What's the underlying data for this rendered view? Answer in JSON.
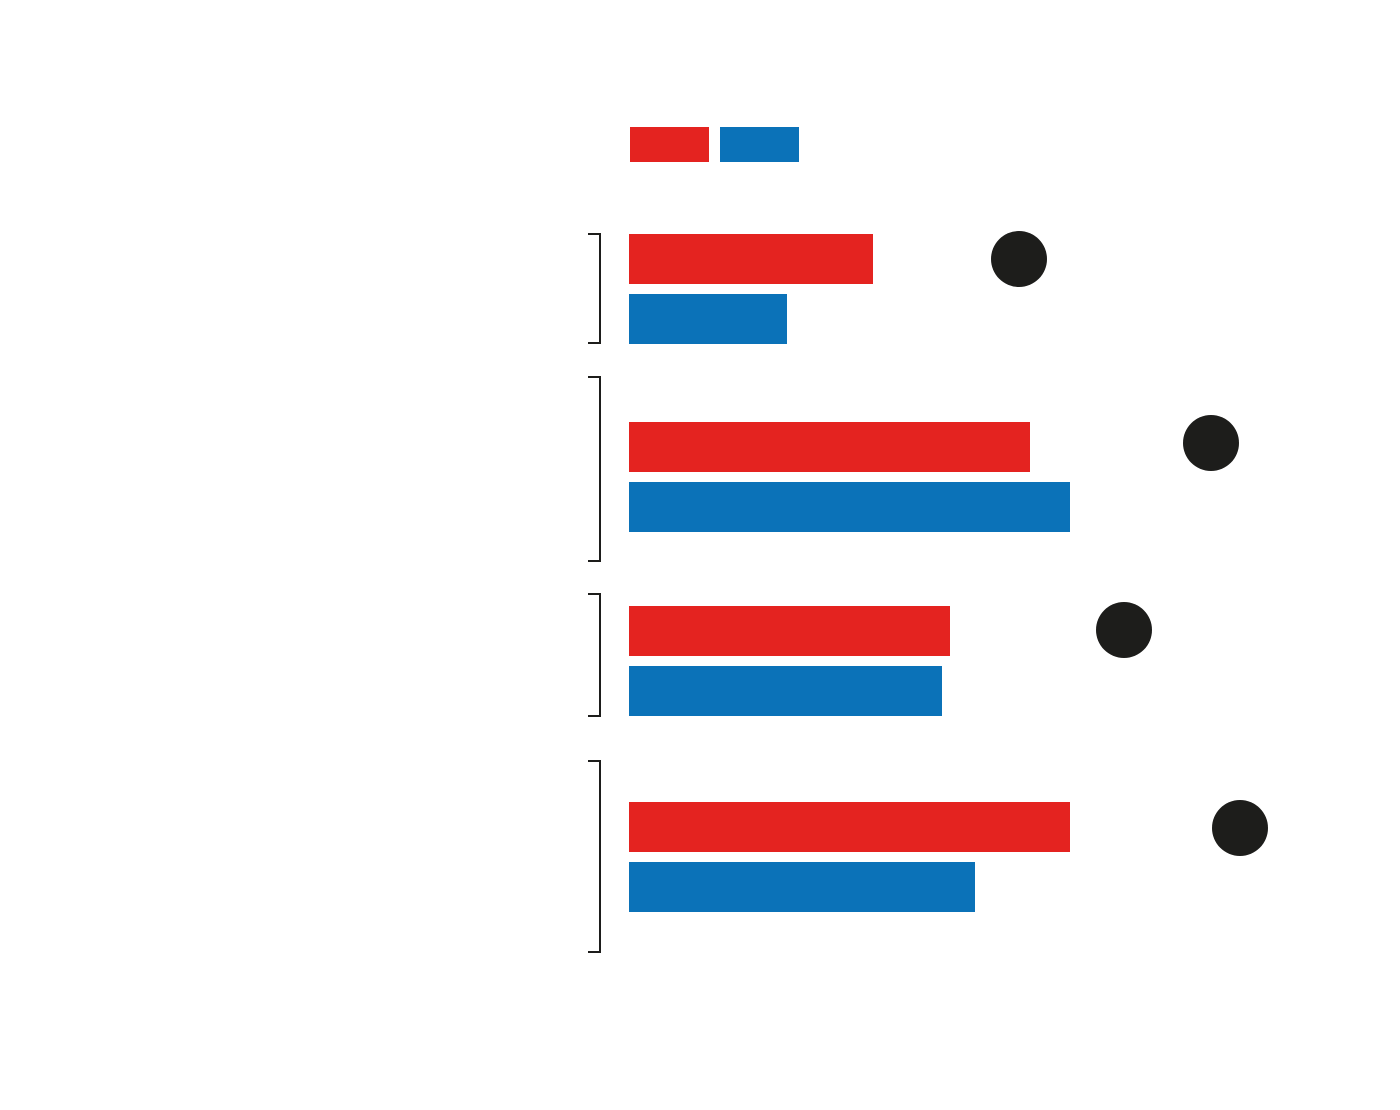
{
  "chart_data": {
    "type": "bar",
    "categories": [
      null,
      null,
      null,
      null
    ],
    "xlim": [
      0,
      771
    ],
    "series": [
      {
        "type": "bar",
        "color": "#e42320",
        "values": [
          244,
          401,
          321,
          441
        ]
      },
      {
        "type": "bar",
        "color": "#0b72b8",
        "values": [
          158,
          441,
          313,
          346
        ]
      },
      {
        "type": "dot",
        "color": "#1d1d1b",
        "values": [
          390,
          582,
          495,
          611
        ]
      }
    ]
  }
}
